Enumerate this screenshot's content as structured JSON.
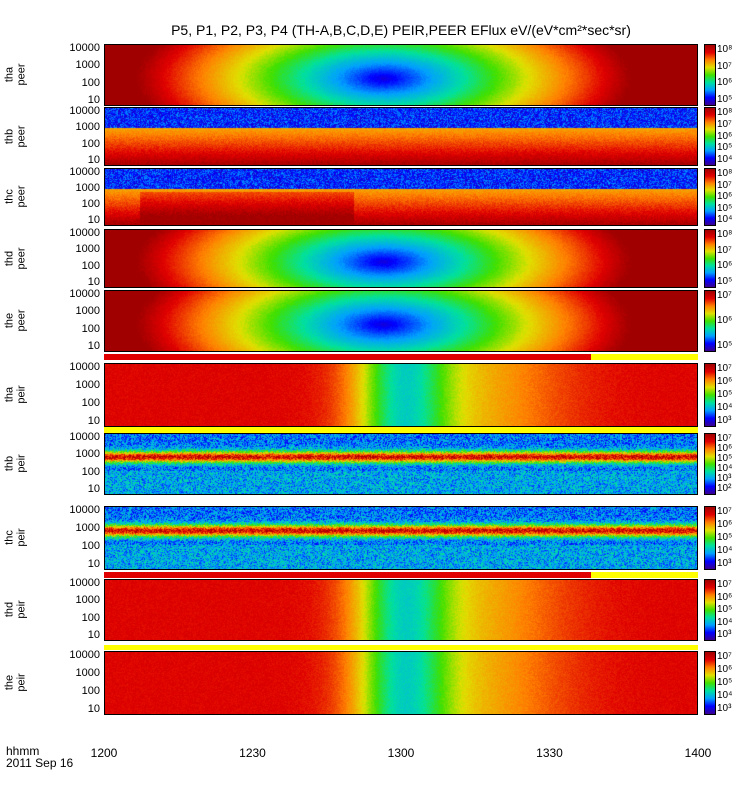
{
  "chart_data": {
    "type": "heatmap",
    "title": "P5, P1, P2, P3, P4 (TH-A,B,C,D,E) PEIR,PEER EFlux eV/(eV*cm²*sec*sr)",
    "x_axis": {
      "ticks": [
        "1200",
        "1230",
        "1300",
        "1330",
        "1400"
      ],
      "range": [
        "12:00",
        "14:00"
      ],
      "label_line1": "hhmm",
      "label_line2": "2011 Sep 16"
    },
    "y_scale": "log",
    "y_ticks": [
      "10000",
      "1000",
      "100",
      "10"
    ],
    "colormap": [
      "#3a0090",
      "#0000ff",
      "#00a0ff",
      "#00e0a0",
      "#40e000",
      "#e0e000",
      "#ff8000",
      "#e00000",
      "#a00000"
    ],
    "panels": [
      {
        "id": "tha_peer",
        "ylabel": [
          "tha",
          "peer"
        ],
        "colorbar": [
          "10⁸",
          "10⁷",
          "10⁶",
          "10⁵"
        ],
        "pattern": "central_low"
      },
      {
        "id": "thb_peer",
        "ylabel": [
          "thb",
          "peer"
        ],
        "colorbar": [
          "10⁸",
          "10⁷",
          "10⁶",
          "10⁵",
          "10⁴"
        ],
        "pattern": "band_low"
      },
      {
        "id": "thc_peer",
        "ylabel": [
          "thc",
          "peer"
        ],
        "colorbar": [
          "10⁸",
          "10⁷",
          "10⁶",
          "10⁵",
          "10⁴"
        ],
        "pattern": "band_low_steps"
      },
      {
        "id": "thd_peer",
        "ylabel": [
          "thd",
          "peer"
        ],
        "colorbar": [
          "10⁸",
          "10⁷",
          "10⁶",
          "10⁵"
        ],
        "pattern": "central_low"
      },
      {
        "id": "the_peer",
        "ylabel": [
          "the",
          "peer"
        ],
        "colorbar": [
          "10⁷",
          "10⁶",
          "10⁵"
        ],
        "pattern": "central_low"
      },
      {
        "id": "tha_peir",
        "ylabel": [
          "tha",
          "peir"
        ],
        "colorbar": [
          "10⁷",
          "10⁶",
          "10⁵",
          "10⁴",
          "10³"
        ],
        "pattern": "ion_hot"
      },
      {
        "id": "thb_peir",
        "ylabel": [
          "thb",
          "peir"
        ],
        "colorbar": [
          "10⁷",
          "10⁶",
          "10⁵",
          "10⁴",
          "10³",
          "10²"
        ],
        "pattern": "ion_band"
      },
      {
        "id": "thc_peir",
        "ylabel": [
          "thc",
          "peir"
        ],
        "colorbar": [
          "10⁷",
          "10⁶",
          "10⁵",
          "10⁴",
          "10³"
        ],
        "pattern": "ion_band_steps"
      },
      {
        "id": "thd_peir",
        "ylabel": [
          "thd",
          "peir"
        ],
        "colorbar": [
          "10⁷",
          "10⁶",
          "10⁵",
          "10⁴",
          "10³"
        ],
        "pattern": "ion_hot"
      },
      {
        "id": "the_peir",
        "ylabel": [
          "the",
          "peir"
        ],
        "colorbar": [
          "10⁷",
          "10⁶",
          "10⁵",
          "10⁴",
          "10³"
        ],
        "pattern": "ion_hot"
      }
    ]
  }
}
